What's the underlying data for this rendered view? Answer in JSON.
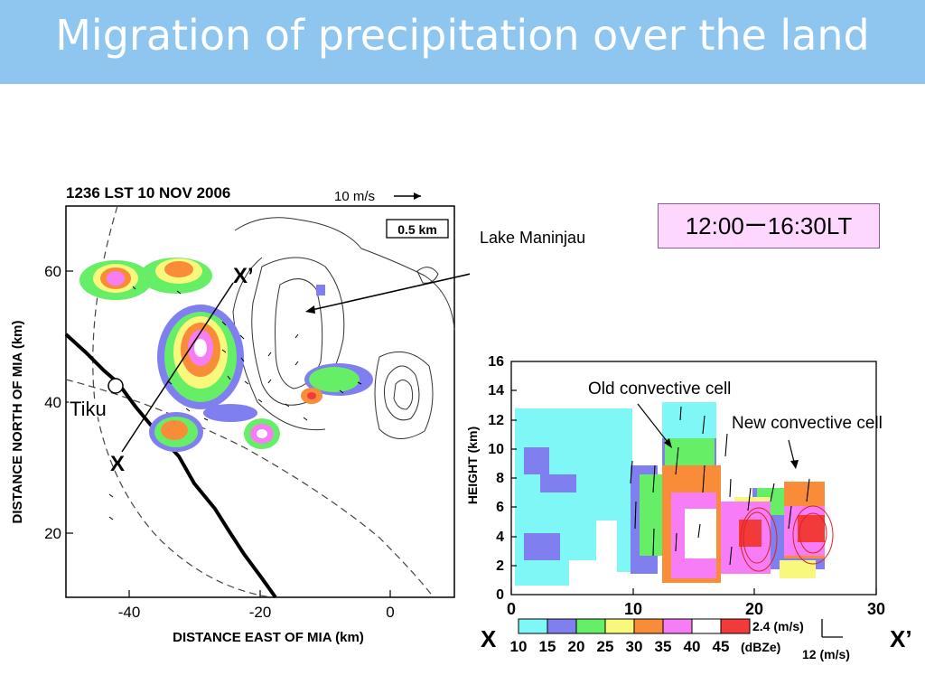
{
  "slide": {
    "title": "Migration of precipitation over the land",
    "time_range": "12:00ー16:30LT"
  },
  "map_panel": {
    "timestamp": "1236 LST 10 NOV 2006",
    "wind_scale": "10 m/s",
    "altitude": "0.5 km",
    "ylabel": "DISTANCE NORTH OF MIA (km)",
    "xlabel": "DISTANCE EAST OF MIA (km)",
    "xticks": [
      "-40",
      "-20",
      "0"
    ],
    "yticks": [
      "60",
      "40",
      "20"
    ],
    "labels": {
      "lake": "Lake Maninjau",
      "town": "Tiku",
      "x_start": "X",
      "x_end": "X’"
    }
  },
  "section_panel": {
    "ylabel": "HEIGHT (km)",
    "yticks": [
      "0",
      "2",
      "4",
      "6",
      "8",
      "10",
      "12",
      "14",
      "16"
    ],
    "xticks": [
      "0",
      "10",
      "20",
      "30"
    ],
    "annotations": {
      "old_cell": "Old convective cell",
      "new_cell": "New convective cell"
    },
    "x_start": "X",
    "x_end": "X’",
    "vector_scale_w": "2.4 (m/s)",
    "vector_scale_u": "12 (m/s)",
    "colorbar": {
      "labels": [
        "10",
        "15",
        "20",
        "25",
        "30",
        "35",
        "40",
        "45"
      ],
      "unit": "(dBZe)",
      "colors": [
        "#7ff7f7",
        "#7f7ff0",
        "#66ee66",
        "#f8f87c",
        "#f98c39",
        "#f77df7",
        "#ffffff",
        "#f23a3a"
      ]
    }
  }
}
